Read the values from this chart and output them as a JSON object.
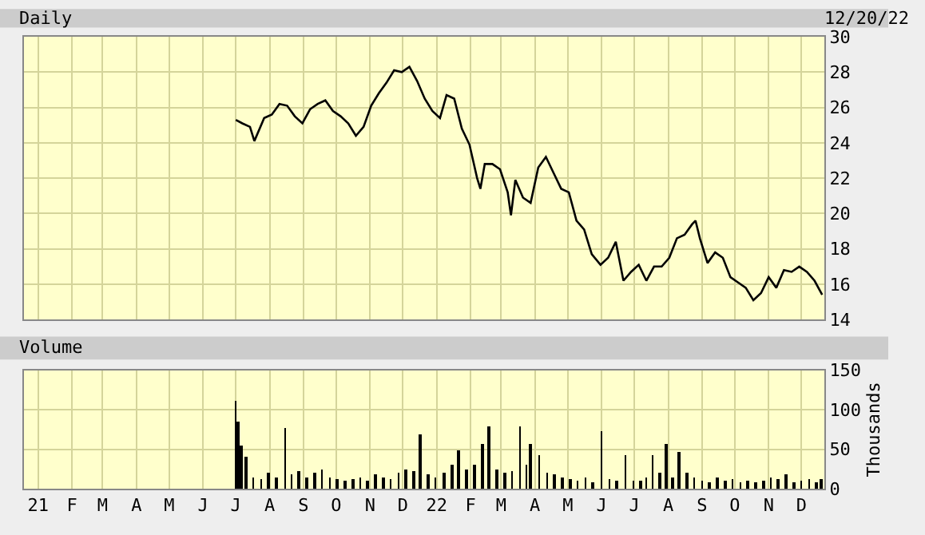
{
  "chart_data": [
    {
      "type": "line",
      "title": "Daily",
      "annotations": [
        "12/20/22"
      ],
      "color": "#000000",
      "grid": true,
      "tick_labels": "y",
      "xlim": [
        "2020-12-19",
        "2022-12-22"
      ],
      "ylim": [
        14,
        30
      ],
      "yticks": [
        14,
        16,
        18,
        20,
        22,
        24,
        26,
        28,
        30
      ],
      "x": [
        "2021-07-01",
        "2021-07-07",
        "2021-07-14",
        "2021-07-18",
        "2021-07-27",
        "2021-08-03",
        "2021-08-10",
        "2021-08-17",
        "2021-08-24",
        "2021-08-31",
        "2021-09-07",
        "2021-09-14",
        "2021-09-21",
        "2021-09-28",
        "2021-10-05",
        "2021-10-12",
        "2021-10-19",
        "2021-10-26",
        "2021-11-02",
        "2021-11-09",
        "2021-11-16",
        "2021-11-23",
        "2021-11-30",
        "2021-12-07",
        "2021-12-14",
        "2021-12-21",
        "2021-12-28",
        "2022-01-04",
        "2022-01-10",
        "2022-01-17",
        "2022-01-24",
        "2022-01-31",
        "2022-02-07",
        "2022-02-10",
        "2022-02-14",
        "2022-02-21",
        "2022-02-28",
        "2022-03-07",
        "2022-03-10",
        "2022-03-14",
        "2022-03-21",
        "2022-03-28",
        "2022-04-04",
        "2022-04-11",
        "2022-04-18",
        "2022-04-25",
        "2022-05-02",
        "2022-05-09",
        "2022-05-16",
        "2022-05-23",
        "2022-05-31",
        "2022-06-07",
        "2022-06-14",
        "2022-06-21",
        "2022-06-28",
        "2022-07-05",
        "2022-07-12",
        "2022-07-19",
        "2022-07-26",
        "2022-08-02",
        "2022-08-09",
        "2022-08-16",
        "2022-08-23",
        "2022-08-26",
        "2022-08-30",
        "2022-09-06",
        "2022-09-13",
        "2022-09-20",
        "2022-09-27",
        "2022-10-04",
        "2022-10-11",
        "2022-10-18",
        "2022-10-25",
        "2022-11-01",
        "2022-11-08",
        "2022-11-15",
        "2022-11-22",
        "2022-11-29",
        "2022-12-06",
        "2022-12-13",
        "2022-12-20"
      ],
      "values": [
        25.3,
        25.1,
        24.9,
        24.1,
        25.4,
        25.6,
        26.2,
        26.1,
        25.5,
        25.1,
        25.9,
        26.2,
        26.4,
        25.8,
        25.5,
        25.1,
        24.4,
        24.9,
        26.1,
        26.8,
        27.4,
        28.1,
        28.0,
        28.3,
        27.5,
        26.5,
        25.8,
        25.4,
        26.7,
        26.5,
        24.8,
        23.9,
        22.0,
        21.4,
        22.8,
        22.8,
        22.5,
        21.2,
        19.9,
        21.9,
        20.9,
        20.6,
        22.6,
        23.2,
        22.3,
        21.4,
        21.2,
        19.6,
        19.1,
        17.7,
        17.1,
        17.5,
        18.4,
        16.2,
        16.7,
        17.1,
        16.2,
        17.0,
        17.0,
        17.5,
        18.6,
        18.8,
        19.4,
        19.6,
        18.6,
        17.2,
        17.8,
        17.5,
        16.4,
        16.1,
        15.8,
        15.1,
        15.5,
        16.4,
        15.8,
        16.8,
        16.7,
        17.0,
        16.7,
        16.2,
        15.4
      ]
    },
    {
      "type": "bar",
      "title": "Volume",
      "ylabel": "Thousands",
      "color": "#000000",
      "grid": true,
      "xlim": [
        "2020-12-19",
        "2022-12-22"
      ],
      "ylim": [
        0,
        150
      ],
      "yticks": [
        0,
        50,
        100,
        150
      ],
      "xticks": [
        {
          "value": "2021-01-01",
          "label": "21"
        },
        {
          "value": "2021-02-01",
          "label": "F"
        },
        {
          "value": "2021-03-01",
          "label": "M"
        },
        {
          "value": "2021-04-01",
          "label": "A"
        },
        {
          "value": "2021-05-01",
          "label": "M"
        },
        {
          "value": "2021-06-01",
          "label": "J"
        },
        {
          "value": "2021-07-01",
          "label": "J"
        },
        {
          "value": "2021-08-01",
          "label": "A"
        },
        {
          "value": "2021-09-01",
          "label": "S"
        },
        {
          "value": "2021-10-01",
          "label": "O"
        },
        {
          "value": "2021-11-01",
          "label": "N"
        },
        {
          "value": "2021-12-01",
          "label": "D"
        },
        {
          "value": "2022-01-01",
          "label": "22"
        },
        {
          "value": "2022-02-01",
          "label": "F"
        },
        {
          "value": "2022-03-01",
          "label": "M"
        },
        {
          "value": "2022-04-01",
          "label": "A"
        },
        {
          "value": "2022-05-01",
          "label": "M"
        },
        {
          "value": "2022-06-01",
          "label": "J"
        },
        {
          "value": "2022-07-01",
          "label": "J"
        },
        {
          "value": "2022-08-01",
          "label": "A"
        },
        {
          "value": "2022-09-01",
          "label": "S"
        },
        {
          "value": "2022-10-01",
          "label": "O"
        },
        {
          "value": "2022-11-01",
          "label": "N"
        },
        {
          "value": "2022-12-01",
          "label": "D"
        }
      ],
      "x": [
        "2021-07-01",
        "2021-07-03",
        "2021-07-06",
        "2021-07-10",
        "2021-07-17",
        "2021-07-24",
        "2021-07-31",
        "2021-08-07",
        "2021-08-15",
        "2021-08-21",
        "2021-08-28",
        "2021-09-04",
        "2021-09-11",
        "2021-09-18",
        "2021-09-25",
        "2021-10-02",
        "2021-10-09",
        "2021-10-16",
        "2021-10-23",
        "2021-10-30",
        "2021-11-06",
        "2021-11-13",
        "2021-11-20",
        "2021-11-27",
        "2021-12-04",
        "2021-12-11",
        "2021-12-17",
        "2021-12-24",
        "2021-12-31",
        "2022-01-08",
        "2022-01-15",
        "2022-01-21",
        "2022-01-28",
        "2022-02-05",
        "2022-02-12",
        "2022-02-18",
        "2022-02-25",
        "2022-03-04",
        "2022-03-11",
        "2022-03-18",
        "2022-03-24",
        "2022-03-28",
        "2022-04-05",
        "2022-04-12",
        "2022-04-19",
        "2022-04-26",
        "2022-05-03",
        "2022-05-10",
        "2022-05-17",
        "2022-05-24",
        "2022-06-01",
        "2022-06-08",
        "2022-06-15",
        "2022-06-23",
        "2022-06-30",
        "2022-07-07",
        "2022-07-12",
        "2022-07-18",
        "2022-07-24",
        "2022-07-30",
        "2022-08-05",
        "2022-08-11",
        "2022-08-18",
        "2022-08-25",
        "2022-09-01",
        "2022-09-08",
        "2022-09-15",
        "2022-09-22",
        "2022-09-29",
        "2022-10-06",
        "2022-10-13",
        "2022-10-20",
        "2022-10-27",
        "2022-11-03",
        "2022-11-10",
        "2022-11-17",
        "2022-11-24",
        "2022-12-01",
        "2022-12-08",
        "2022-12-15",
        "2022-12-19"
      ],
      "values": [
        112,
        85,
        55,
        40,
        15,
        12,
        20,
        15,
        78,
        18,
        22,
        15,
        20,
        25,
        15,
        12,
        10,
        12,
        14,
        10,
        18,
        15,
        12,
        20,
        25,
        22,
        70,
        18,
        15,
        20,
        30,
        48,
        25,
        30,
        57,
        80,
        25,
        20,
        22,
        80,
        30,
        57,
        43,
        20,
        18,
        15,
        12,
        10,
        15,
        8,
        74,
        12,
        10,
        43,
        10,
        10,
        15,
        43,
        20,
        57,
        15,
        47,
        20,
        15,
        10,
        8,
        15,
        10,
        12,
        8,
        10,
        8,
        10,
        15,
        12,
        18,
        8,
        10,
        12,
        8,
        12
      ]
    }
  ]
}
